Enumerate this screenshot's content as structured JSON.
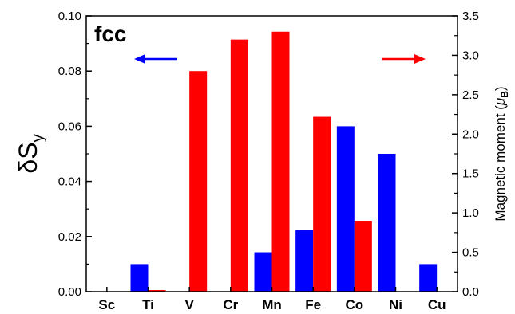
{
  "chart_data": {
    "type": "bar",
    "panel_label": "fcc",
    "categories": [
      "Sc",
      "Ti",
      "V",
      "Cr",
      "Mn",
      "Fe",
      "Co",
      "Ni",
      "Cu"
    ],
    "left_axis": {
      "label_main": "δS",
      "label_sub": "y",
      "ylim": [
        0,
        0.1
      ],
      "ticks": [
        "0.00",
        "0.02",
        "0.04",
        "0.06",
        "0.08",
        "0.10"
      ]
    },
    "right_axis": {
      "label_main": "Magnetic moment (",
      "label_mu": "μ",
      "label_sub": "B",
      "label_close": ")",
      "ylim": [
        0,
        3.5
      ],
      "ticks": [
        "0.0",
        "0.5",
        "1.0",
        "1.5",
        "2.0",
        "2.5",
        "3.0",
        "3.5"
      ]
    },
    "series": [
      {
        "axis": "left",
        "color": "#0000ff",
        "values": [
          0,
          0.01,
          0,
          0,
          0.0143,
          0.0223,
          0.06,
          0.05,
          0.01
        ]
      },
      {
        "axis": "right",
        "color": "#ff0000",
        "values": [
          0,
          0.02,
          2.8,
          3.2,
          3.3,
          2.22,
          0.9,
          0,
          0
        ]
      }
    ],
    "arrows": [
      {
        "direction": "left",
        "color": "#0000ff"
      },
      {
        "direction": "right",
        "color": "#ff0000"
      }
    ]
  }
}
